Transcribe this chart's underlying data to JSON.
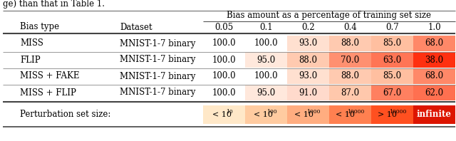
{
  "header_title": "Bias amount as a percentage of training set size",
  "col_headers": [
    "0.05",
    "0.1",
    "0.2",
    "0.4",
    "0.7",
    "1.0"
  ],
  "col1_header": "Bias type",
  "col2_header": "Dataset",
  "rows": [
    {
      "bias_type": "MISS",
      "dataset": "MNIST-1-7 binary",
      "values": [
        100.0,
        100.0,
        93.0,
        88.0,
        85.0,
        68.0
      ]
    },
    {
      "bias_type": "FLIP",
      "dataset": "MNIST-1-7 binary",
      "values": [
        100.0,
        95.0,
        88.0,
        70.0,
        63.0,
        38.0
      ]
    },
    {
      "bias_type": "MISS + FAKE",
      "dataset": "MNIST-1-7 binary",
      "values": [
        100.0,
        100.0,
        93.0,
        88.0,
        85.0,
        68.0
      ]
    },
    {
      "bias_type": "MISS + FLIP",
      "dataset": "MNIST-1-7 binary",
      "values": [
        100.0,
        95.0,
        91.0,
        87.0,
        67.0,
        62.0
      ]
    }
  ],
  "perturbation_label": "Perturbation set size:",
  "perturb_entries": [
    {
      "prefix": "< 10",
      "sup": "10"
    },
    {
      "prefix": "< 10",
      "sup": "100"
    },
    {
      "prefix": "< 10",
      "sup": "1000"
    },
    {
      "prefix": "< 10",
      "sup": "10000"
    },
    {
      "prefix": "> 10",
      "sup": "10000"
    },
    {
      "prefix": "infinite",
      "sup": ""
    }
  ],
  "cell_colors": {
    "100.0": "#FFFFFF",
    "95.0": "#FFE8DC",
    "93.0": "#FFE0D0",
    "91.0": "#FFDACC",
    "88.0": "#FFCAB0",
    "87.0": "#FFC8AC",
    "85.0": "#FFBFA0",
    "70.0": "#FF9070",
    "68.0": "#FF8868",
    "67.0": "#FF8060",
    "63.0": "#FF7555",
    "62.0": "#FF7050",
    "38.0": "#FF3010"
  },
  "perturb_colors": [
    "#FFE8C8",
    "#FFCBA0",
    "#FFAD80",
    "#FF8050",
    "#FF5020",
    "#DD1500"
  ],
  "bg_color": "#FFFFFF",
  "line_color": "#888888",
  "thick_line_color": "#444444",
  "text_color": "#000000",
  "title_above": "ge) than that in Table 1."
}
